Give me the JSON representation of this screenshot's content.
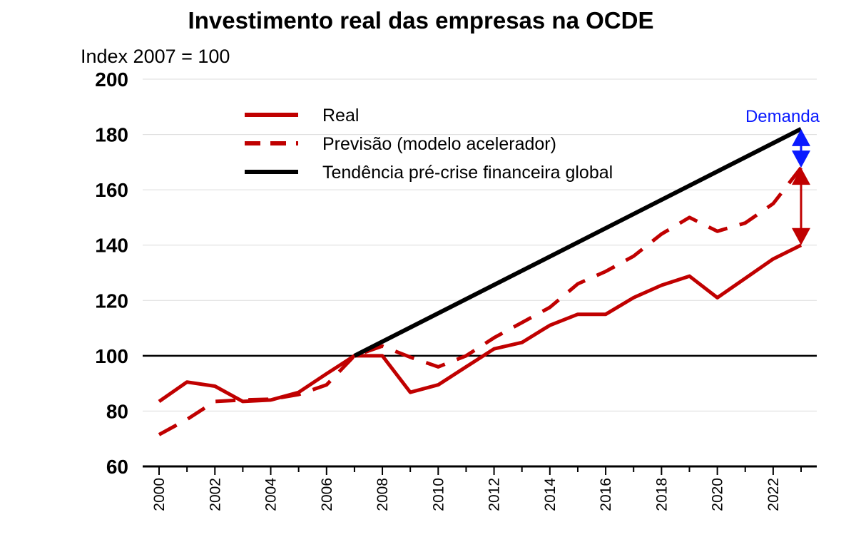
{
  "chart_data": {
    "type": "line",
    "title": "Investimento real das empresas na OCDE",
    "ylabel": "Index 2007 = 100",
    "ylim": [
      60,
      200
    ],
    "yticks": [
      60,
      80,
      100,
      120,
      140,
      160,
      180,
      200
    ],
    "xlim": [
      2000,
      2023
    ],
    "xticks": [
      2000,
      2002,
      2004,
      2006,
      2008,
      2010,
      2012,
      2014,
      2016,
      2018,
      2020,
      2022
    ],
    "grid": true,
    "reference_line": 100,
    "legend_position": "top",
    "series": [
      {
        "name": "Real",
        "style": "solid",
        "color": "#c00000",
        "x": [
          2000,
          2001,
          2002,
          2003,
          2004,
          2005,
          2006,
          2007,
          2008,
          2009,
          2010,
          2011,
          2012,
          2013,
          2014,
          2015,
          2016,
          2017,
          2018,
          2019,
          2020,
          2021,
          2022,
          2023
        ],
        "values": [
          83.5,
          90.5,
          89.0,
          83.5,
          84.0,
          86.8,
          93.5,
          100.0,
          100.0,
          86.8,
          89.5,
          96.0,
          102.5,
          104.8,
          111.0,
          115.0,
          115.0,
          121.0,
          125.5,
          128.8,
          121.0,
          128.0,
          135.0,
          140.0
        ]
      },
      {
        "name": "Previsão (modelo acelerador)",
        "style": "dashed",
        "color": "#c00000",
        "x": [
          2000,
          2001,
          2002,
          2003,
          2004,
          2005,
          2006,
          2007,
          2008,
          2009,
          2010,
          2011,
          2012,
          2013,
          2014,
          2015,
          2016,
          2017,
          2018,
          2019,
          2020,
          2021,
          2022,
          2023
        ],
        "values": [
          71.5,
          77.0,
          83.5,
          84.0,
          84.3,
          86.0,
          89.5,
          100.0,
          103.5,
          99.5,
          96.0,
          100.0,
          106.5,
          112.0,
          117.5,
          126.0,
          130.5,
          136.0,
          144.0,
          150.0,
          145.0,
          148.0,
          155.0,
          168.0
        ]
      },
      {
        "name": "Tendência pré-crise financeira global",
        "style": "solid",
        "color": "#000000",
        "x": [
          2007,
          2023
        ],
        "values": [
          100.0,
          182.0
        ]
      }
    ],
    "annotations": [
      {
        "text": "Demanda",
        "color": "#0a1aff",
        "x": 2023,
        "from": 182,
        "to": 168,
        "kind": "double-arrow"
      },
      {
        "x": 2023,
        "from": 168,
        "to": 140,
        "color": "#c00000",
        "kind": "double-arrow"
      }
    ]
  }
}
